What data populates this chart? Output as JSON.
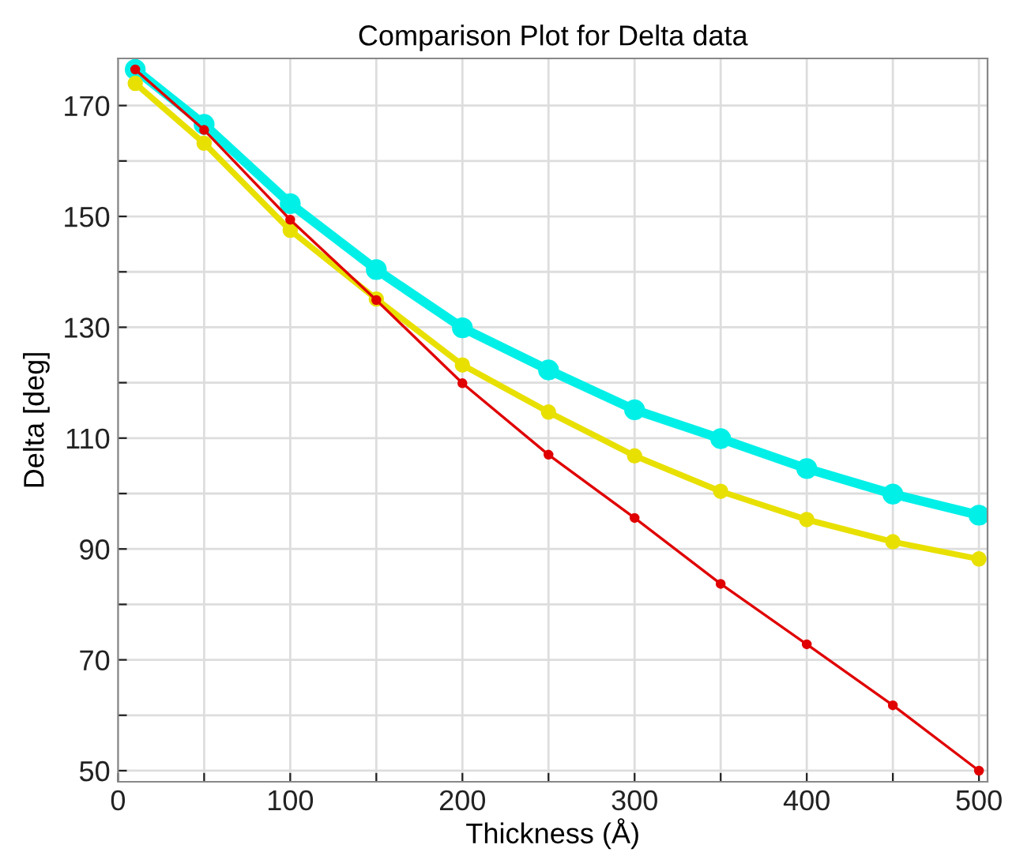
{
  "chart_data": {
    "type": "line",
    "title": "Comparison Plot for Delta data",
    "xlabel": "Thickness (Å)",
    "ylabel": "Delta [deg]",
    "x": [
      10,
      50,
      100,
      150,
      200,
      250,
      300,
      350,
      400,
      450,
      500
    ],
    "series": [
      {
        "color": "#00f0e8",
        "values": [
          176.5,
          166.6,
          152.3,
          140.4,
          129.9,
          122.3,
          115.1,
          109.9,
          104.5,
          99.9,
          96.1
        ]
      },
      {
        "color": "#e8e000",
        "values": [
          174,
          163.2,
          147.5,
          135.1,
          123.2,
          114.7,
          106.8,
          100.4,
          95.3,
          91.3,
          88.2
        ]
      },
      {
        "color": "#e00000",
        "values": [
          176.5,
          165.6,
          149.4,
          134.9,
          119.9,
          107,
          95.6,
          83.7,
          72.8,
          61.8,
          50
        ]
      }
    ],
    "xlim": [
      0,
      505
    ],
    "ylim": [
      48,
      178.5
    ],
    "xticks": [
      0,
      {
        "value": 50,
        "label": null
      },
      100,
      {
        "value": 150,
        "label": null
      },
      200,
      {
        "value": 250,
        "label": null
      },
      300,
      {
        "value": 350,
        "label": null
      },
      400,
      {
        "value": 450,
        "label": null
      },
      500
    ],
    "yticks": [
      50,
      {
        "value": 60,
        "label": null
      },
      70,
      {
        "value": 80,
        "label": null
      },
      90,
      {
        "value": 100,
        "label": null
      },
      110,
      {
        "value": 120,
        "label": null
      },
      130,
      {
        "value": 140,
        "label": null
      },
      150,
      {
        "value": 160,
        "label": null
      },
      170
    ],
    "grid": true,
    "marker": "circle",
    "line_style": "solid"
  }
}
